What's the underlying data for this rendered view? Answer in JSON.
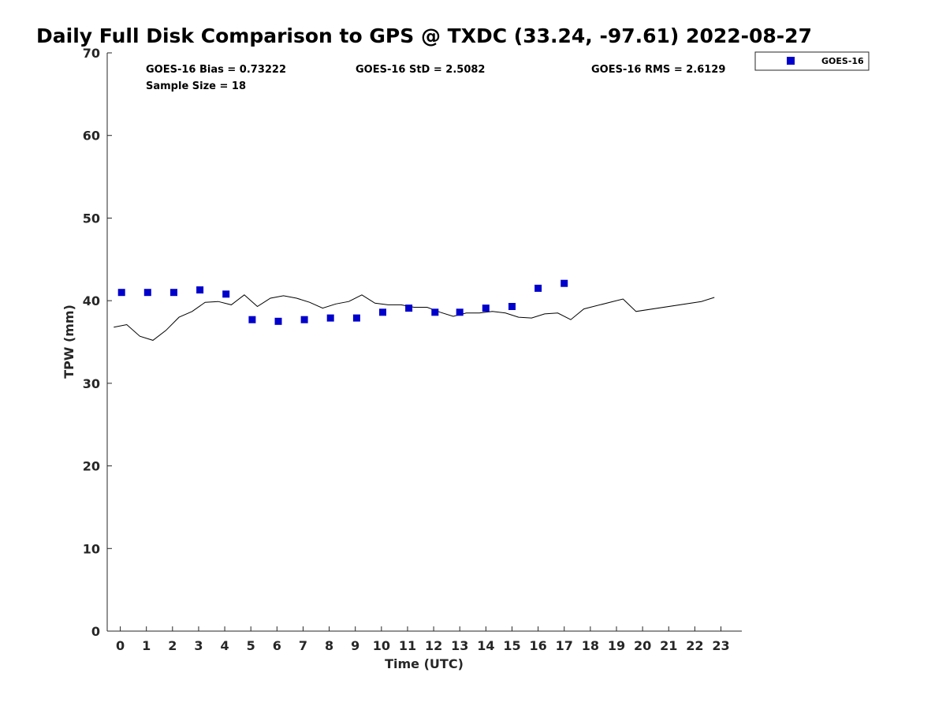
{
  "chart_data": {
    "type": "scatter",
    "title": "Daily Full Disk Comparison to GPS @ TXDC (33.24, -97.61) 2022-08-27",
    "xlabel": "Time (UTC)",
    "ylabel": "TPW (mm)",
    "xlim": [
      -0.5,
      23.8
    ],
    "ylim": [
      0,
      70
    ],
    "xticks": [
      "0",
      "1",
      "2",
      "3",
      "4",
      "5",
      "6",
      "7",
      "8",
      "9",
      "10",
      "11",
      "12",
      "13",
      "14",
      "15",
      "16",
      "17",
      "18",
      "19",
      "20",
      "21",
      "22",
      "23"
    ],
    "yticks": [
      "0",
      "10",
      "20",
      "30",
      "40",
      "50",
      "60",
      "70"
    ],
    "grid": false,
    "legend_position": "top-right outside",
    "stats": {
      "bias": "GOES-16 Bias = 0.73222",
      "std": "GOES-16 StD = 2.5082",
      "rms": "GOES-16 RMS = 2.6129",
      "sample": "Sample Size = 18"
    },
    "series": [
      {
        "name": "GOES-16",
        "kind": "scatter",
        "color": "#0000cc",
        "marker": "square",
        "x": [
          0.05,
          1.05,
          2.05,
          3.05,
          4.05,
          5.05,
          6.05,
          7.05,
          8.05,
          9.05,
          10.05,
          11.05,
          12.05,
          13.0,
          14.0,
          15.0,
          16.0,
          17.0
        ],
        "y": [
          41.0,
          41.0,
          41.0,
          41.3,
          40.8,
          37.7,
          37.5,
          37.7,
          37.9,
          37.9,
          38.6,
          39.1,
          38.6,
          38.6,
          39.1,
          39.3,
          41.5,
          42.1
        ]
      },
      {
        "kind": "line",
        "color": "#000000",
        "x": [
          -0.25,
          0.25,
          0.75,
          1.25,
          1.75,
          2.25,
          2.75,
          3.25,
          3.75,
          4.25,
          4.75,
          5.25,
          5.75,
          6.25,
          6.75,
          7.25,
          7.75,
          8.25,
          8.75,
          9.25,
          9.75,
          10.25,
          10.75,
          11.25,
          11.75,
          12.25,
          12.75,
          13.25,
          13.75,
          14.25,
          14.75,
          15.25,
          15.75,
          16.25,
          16.75,
          17.25,
          17.75,
          19.25,
          19.75,
          22.25,
          22.75
        ],
        "y": [
          36.8,
          37.1,
          35.7,
          35.2,
          36.4,
          38.0,
          38.7,
          39.8,
          39.9,
          39.5,
          40.7,
          39.3,
          40.3,
          40.6,
          40.3,
          39.8,
          39.1,
          39.6,
          39.9,
          40.7,
          39.7,
          39.5,
          39.5,
          39.2,
          39.2,
          38.6,
          38.1,
          38.5,
          38.5,
          38.7,
          38.5,
          38.0,
          37.9,
          38.4,
          38.5,
          37.7,
          39.0,
          40.2,
          38.7,
          39.9,
          40.4
        ]
      }
    ]
  }
}
